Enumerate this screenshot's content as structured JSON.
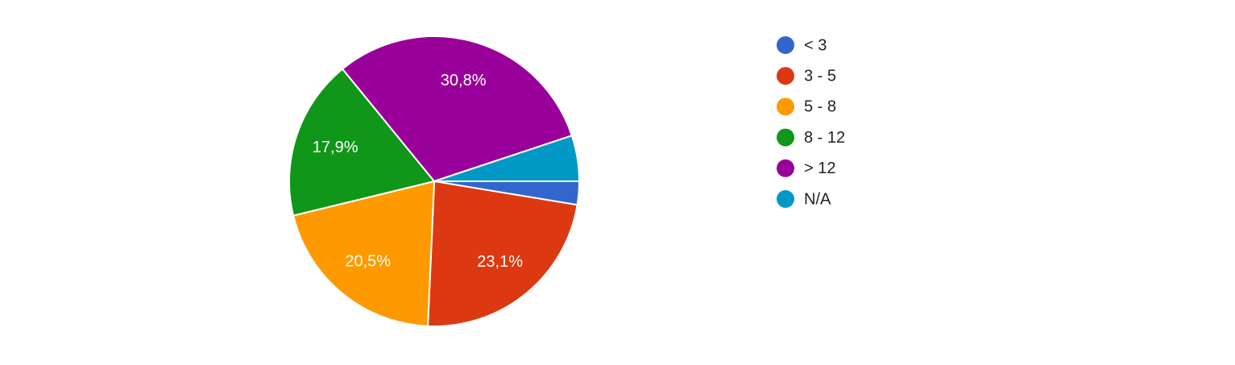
{
  "chart_data": {
    "type": "pie",
    "categories": [
      "< 3",
      "3 - 5",
      "5 - 8",
      "8 - 12",
      "> 12",
      "N/A"
    ],
    "values": [
      2.6,
      23.1,
      20.5,
      17.9,
      30.8,
      5.1
    ],
    "value_labels": [
      null,
      "23,1%",
      "20,5%",
      "17,9%",
      "30,8%",
      null
    ],
    "colors": [
      "#3366cc",
      "#dc3912",
      "#ff9900",
      "#109618",
      "#990099",
      "#0099c6"
    ],
    "legend": "right"
  }
}
